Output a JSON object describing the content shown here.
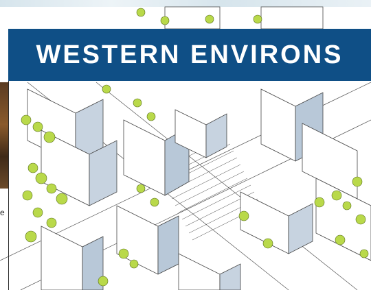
{
  "banner": {
    "title": "WESTERN ENVIRONS"
  },
  "left_fragment": "e",
  "colors": {
    "banner_bg": "#0f4f86",
    "banner_text": "#ffffff",
    "tree_green": "#b9d94a",
    "shadow_blue": "#9fb2c8",
    "line": "#555555"
  },
  "illustration": {
    "subject": "isometric-urban-block-sketch",
    "icon": "city-sketch-icon"
  }
}
